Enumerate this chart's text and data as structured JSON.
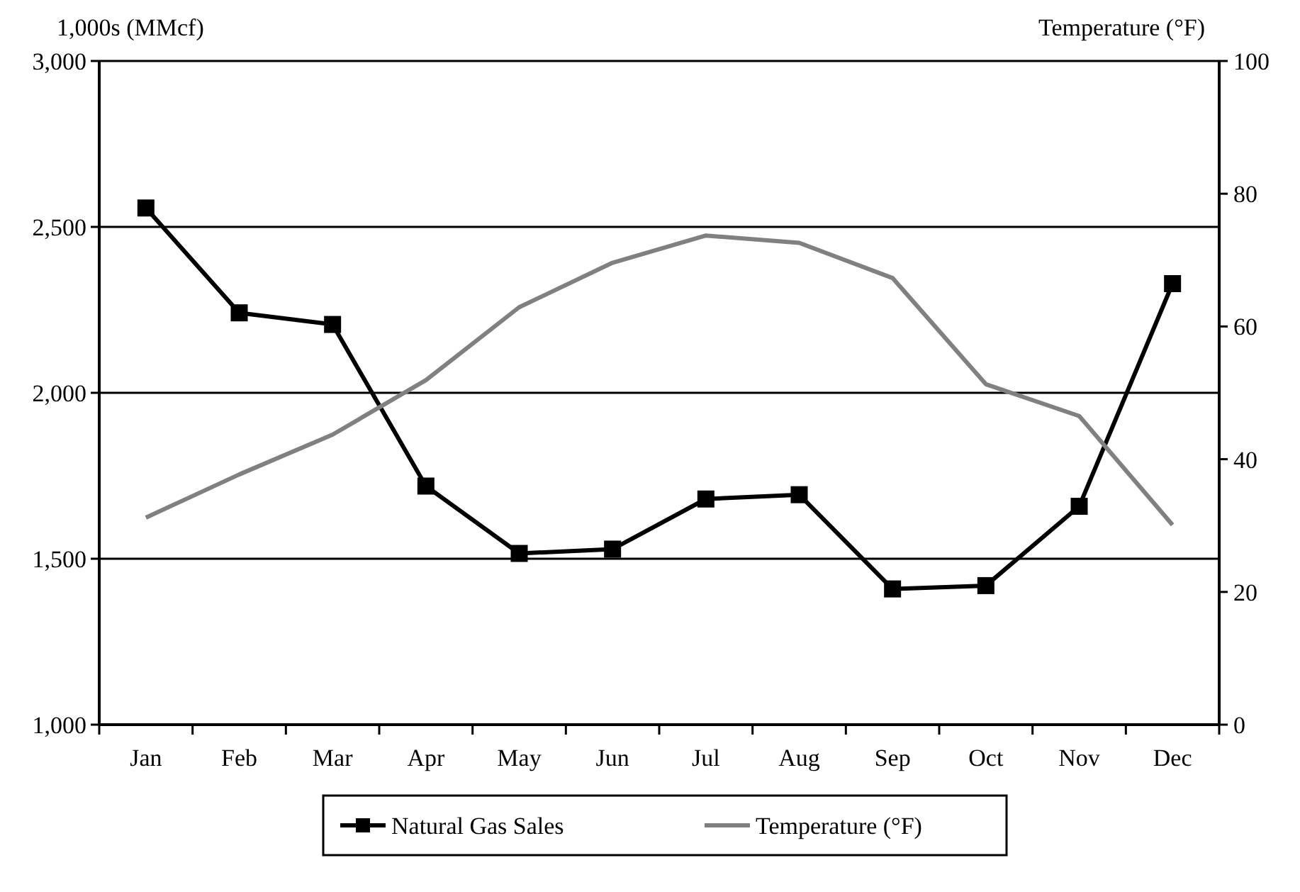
{
  "chart_data": {
    "type": "line",
    "ylabel": "1,000s (MMcf)",
    "y2label": "Temperature (°F)",
    "categories": [
      "Jan",
      "Feb",
      "Mar",
      "Apr",
      "May",
      "Jun",
      "Jul",
      "Aug",
      "Sep",
      "Oct",
      "Nov",
      "Dec"
    ],
    "series": [
      {
        "name": "Natural Gas Sales",
        "color": "#000000",
        "marker": "square",
        "values": [
          2557,
          2241,
          2206,
          1719,
          1516,
          1529,
          1680,
          1693,
          1409,
          1419,
          1658,
          2329
        ]
      },
      {
        "name": "Temperature (°F)",
        "color": "#808080",
        "axis": "y2",
        "marker": "none",
        "values": [
          31.2,
          37.7,
          43.7,
          51.9,
          62.9,
          69.6,
          73.7,
          72.6,
          67.3,
          51.3,
          46.5,
          30.1
        ]
      }
    ],
    "ylim": [
      1000,
      3000
    ],
    "yticks": [
      {
        "value": 1000,
        "label": "1,000"
      },
      {
        "value": 1500,
        "label": "1,500"
      },
      {
        "value": 2000,
        "label": "2,000"
      },
      {
        "value": 2500,
        "label": "2,500"
      },
      {
        "value": 3000,
        "label": "3,000"
      }
    ],
    "y2lim": [
      0,
      100
    ],
    "y2ticks": [
      0,
      20,
      40,
      60,
      80,
      100
    ],
    "grid": "y",
    "legend": "bottom"
  }
}
